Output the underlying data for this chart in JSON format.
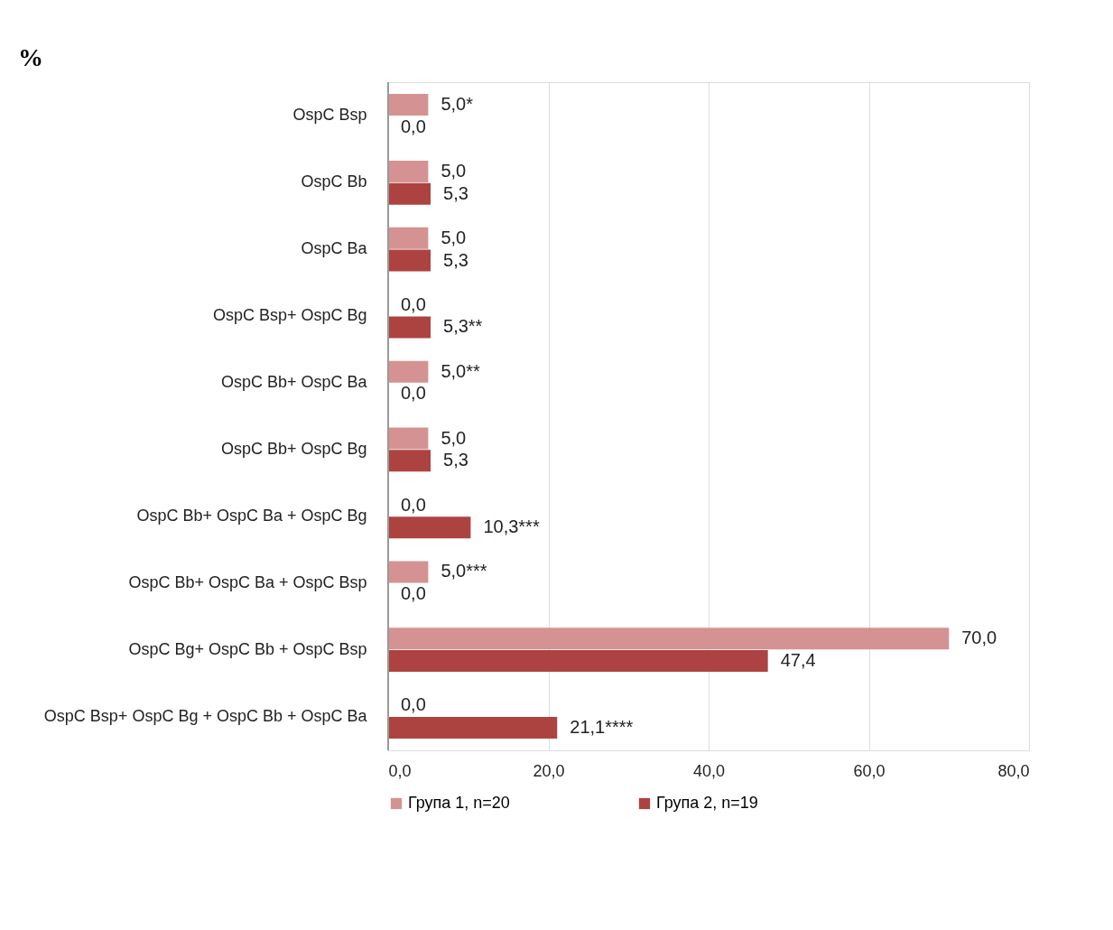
{
  "chart_data": {
    "type": "bar",
    "orientation": "horizontal",
    "title": "%",
    "categories": [
      "OspC Bsp",
      "OspC Bb",
      "OspC Ba",
      "OspC Bsp+ OspC Bg",
      "OspC Bb+ OspC Ba",
      "OspC Bb+ OspC Bg",
      "OspC Bb+ OspC Ba + OspC Bg",
      "OspC Bb+ OspC Ba + OspC Bsp",
      "OspC Bg+ OspC Bb + OspC Bsp",
      "OspC Bsp+ OspC Bg + OspC Bb + OspC Ba"
    ],
    "series": [
      {
        "name": "Група 1, n=20",
        "color": "#d49392",
        "values": [
          5.0,
          5.0,
          5.0,
          0.0,
          5.0,
          5.0,
          0.0,
          5.0,
          70.0,
          0.0
        ],
        "value_labels": [
          "5,0*",
          "5,0",
          "5,0",
          "0,0",
          "5,0**",
          "5,0",
          "0,0",
          "5,0***",
          "70,0",
          "0,0"
        ]
      },
      {
        "name": "Група 2, n=19",
        "color": "#ad4341",
        "values": [
          0.0,
          5.3,
          5.3,
          5.3,
          0.0,
          5.3,
          10.3,
          0.0,
          47.4,
          21.1
        ],
        "value_labels": [
          "0,0",
          "5,3",
          "5,3",
          "5,3**",
          "0,0",
          "5,3",
          "10,3***",
          "0,0",
          "47,4",
          "21,1****"
        ]
      }
    ],
    "xlim": [
      0,
      80
    ],
    "xticks": [
      {
        "value": 0,
        "label": "0,0"
      },
      {
        "value": 20,
        "label": "20,0"
      },
      {
        "value": 40,
        "label": "40,0"
      },
      {
        "value": 60,
        "label": "60,0"
      },
      {
        "value": 80,
        "label": "80,0"
      }
    ],
    "grid": "x",
    "legend": "bottom"
  }
}
